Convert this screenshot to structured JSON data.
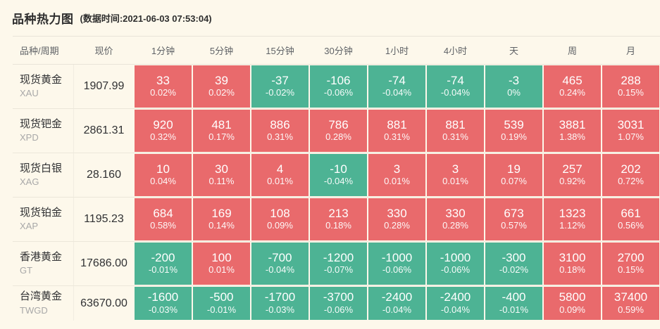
{
  "page": {
    "title": "品种热力图",
    "timestamp": "(数据时间:2021-06-03 07:53:04)"
  },
  "colors": {
    "up": "#e96a6c",
    "down": "#4db394",
    "background": "#fdf8eb"
  },
  "chart_data": {
    "type": "heatmap",
    "title": "品种热力图",
    "data_time": "2021-06-03 07:53:04",
    "row_header_columns": [
      "品种/周期",
      "现价"
    ],
    "period_columns": [
      "1分钟",
      "5分钟",
      "15分钟",
      "30分钟",
      "1小时",
      "4小时",
      "天",
      "周",
      "月"
    ],
    "color_rule": "positive change = red (up), negative change = green (down)",
    "rows": [
      {
        "name": "现货黄金",
        "code": "XAU",
        "price": "1907.99",
        "changes": [
          33,
          39,
          -37,
          -106,
          -74,
          -74,
          -3,
          465,
          288
        ],
        "change_pcts": [
          "0.02%",
          "0.02%",
          "-0.02%",
          "-0.06%",
          "-0.04%",
          "-0.04%",
          "0%",
          "0.24%",
          "0.15%"
        ]
      },
      {
        "name": "现货钯金",
        "code": "XPD",
        "price": "2861.31",
        "changes": [
          920,
          481,
          886,
          786,
          881,
          881,
          539,
          3881,
          3031
        ],
        "change_pcts": [
          "0.32%",
          "0.17%",
          "0.31%",
          "0.28%",
          "0.31%",
          "0.31%",
          "0.19%",
          "1.38%",
          "1.07%"
        ]
      },
      {
        "name": "现货白银",
        "code": "XAG",
        "price": "28.160",
        "changes": [
          10,
          30,
          4,
          -10,
          3,
          3,
          19,
          257,
          202
        ],
        "change_pcts": [
          "0.04%",
          "0.11%",
          "0.01%",
          "-0.04%",
          "0.01%",
          "0.01%",
          "0.07%",
          "0.92%",
          "0.72%"
        ]
      },
      {
        "name": "现货铂金",
        "code": "XAP",
        "price": "1195.23",
        "changes": [
          684,
          169,
          108,
          213,
          330,
          330,
          673,
          1323,
          661
        ],
        "change_pcts": [
          "0.58%",
          "0.14%",
          "0.09%",
          "0.18%",
          "0.28%",
          "0.28%",
          "0.57%",
          "1.12%",
          "0.56%"
        ]
      },
      {
        "name": "香港黄金",
        "code": "GT",
        "price": "17686.00",
        "changes": [
          -200,
          100,
          -700,
          -1200,
          -1000,
          -1000,
          -300,
          3100,
          2700
        ],
        "change_pcts": [
          "-0.01%",
          "0.01%",
          "-0.04%",
          "-0.07%",
          "-0.06%",
          "-0.06%",
          "-0.02%",
          "0.18%",
          "0.15%"
        ]
      },
      {
        "name": "台湾黄金",
        "code": "TWGD",
        "price": "63670.00",
        "changes": [
          -1600,
          -500,
          -1700,
          -3700,
          -2400,
          -2400,
          -400,
          5800,
          37400
        ],
        "change_pcts": [
          "-0.03%",
          "-0.01%",
          "-0.03%",
          "-0.06%",
          "-0.04%",
          "-0.04%",
          "-0.01%",
          "0.09%",
          "0.59%"
        ]
      }
    ]
  }
}
